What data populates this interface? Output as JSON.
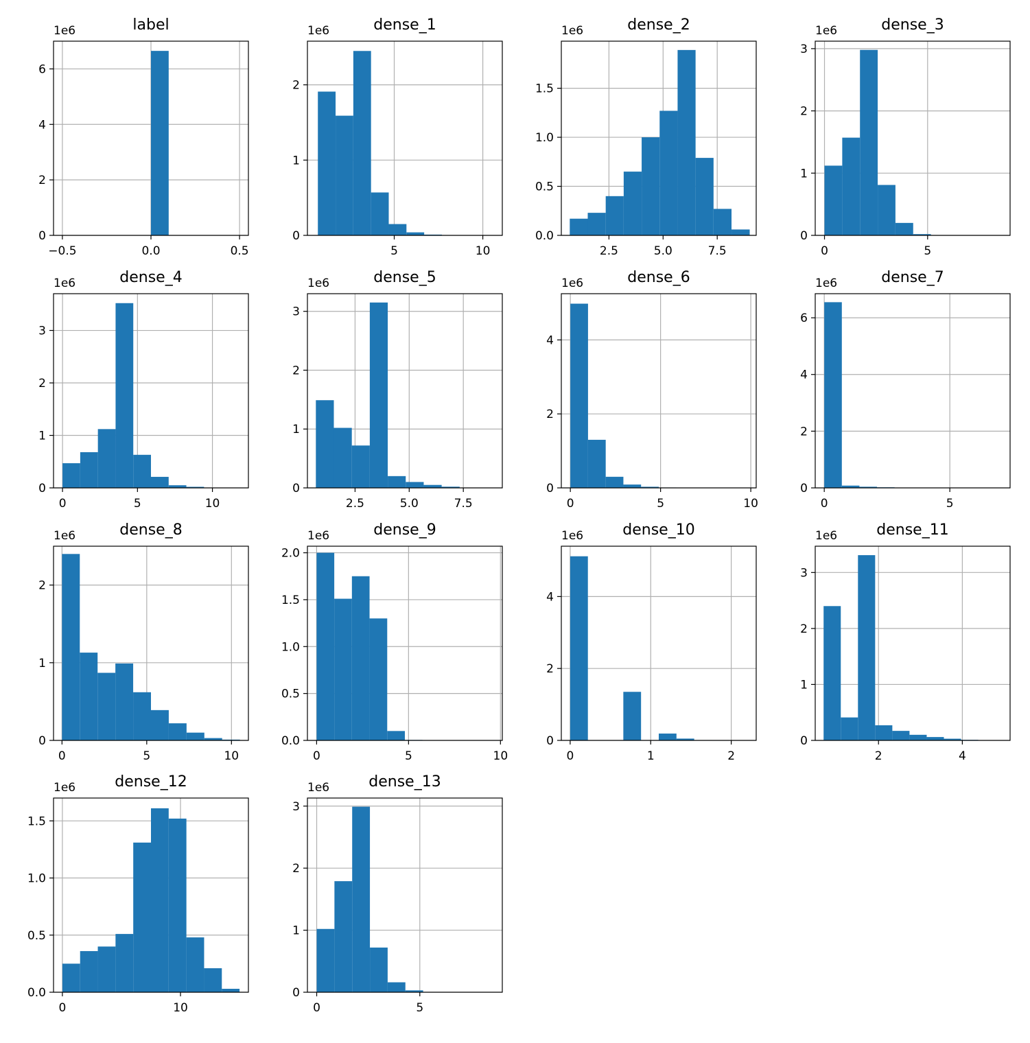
{
  "chart_data": [
    {
      "type": "bar",
      "title": "label",
      "offset_text": "1e6",
      "xlim": [
        -0.55,
        0.55
      ],
      "ylim": [
        0,
        7.0
      ],
      "bin_edges": [
        -0.5,
        -0.4,
        -0.3,
        -0.2,
        -0.1,
        0.0,
        0.1,
        0.2,
        0.3,
        0.4,
        0.5
      ],
      "values": [
        0,
        0,
        0,
        0,
        0,
        6.65,
        0,
        0,
        0,
        0
      ],
      "xticks": [
        -0.5,
        0.0,
        0.5
      ],
      "xtick_labels": [
        "−0.5",
        "0.0",
        "0.5"
      ],
      "yticks": [
        0,
        2,
        4,
        6
      ],
      "ytick_labels": [
        "0",
        "2",
        "4",
        "6"
      ],
      "grid": true
    },
    {
      "type": "bar",
      "title": "dense_1",
      "offset_text": "1e6",
      "xlim": [
        0.1,
        11.1
      ],
      "ylim": [
        0,
        2.58
      ],
      "bin_edges": [
        0.69,
        1.69,
        2.69,
        3.69,
        4.69,
        5.69,
        6.69,
        7.69,
        8.69,
        9.69,
        10.69
      ],
      "values": [
        1.91,
        1.59,
        2.45,
        0.57,
        0.15,
        0.04,
        0.01,
        0.003,
        0.001,
        0.0005
      ],
      "xticks": [
        5,
        10
      ],
      "xtick_labels": [
        "5",
        "10"
      ],
      "yticks": [
        0,
        1,
        2
      ],
      "ytick_labels": [
        "0",
        "1",
        "2"
      ],
      "grid": true
    },
    {
      "type": "bar",
      "title": "dense_2",
      "offset_text": "1e6",
      "xlim": [
        0.3,
        9.3
      ],
      "ylim": [
        0,
        1.98
      ],
      "bin_edges": [
        0.69,
        1.52,
        2.35,
        3.18,
        4.01,
        4.84,
        5.67,
        6.5,
        7.33,
        8.16,
        9.0
      ],
      "values": [
        0.17,
        0.23,
        0.4,
        0.65,
        1.0,
        1.27,
        1.89,
        0.79,
        0.27,
        0.06
      ],
      "xticks": [
        2.5,
        5.0,
        7.5
      ],
      "xtick_labels": [
        "2.5",
        "5.0",
        "7.5"
      ],
      "yticks": [
        0.0,
        0.5,
        1.0,
        1.5
      ],
      "ytick_labels": [
        "0.0",
        "0.5",
        "1.0",
        "1.5"
      ],
      "grid": true
    },
    {
      "type": "bar",
      "title": "dense_3",
      "offset_text": "1e6",
      "xlim": [
        -0.45,
        9.0
      ],
      "ylim": [
        0,
        3.12
      ],
      "bin_edges": [
        0.0,
        0.86,
        1.72,
        2.58,
        3.44,
        4.3,
        5.16,
        6.02,
        6.88,
        7.74,
        8.6
      ],
      "values": [
        1.12,
        1.57,
        2.98,
        0.81,
        0.2,
        0.02,
        0.005,
        0.001,
        0.0005,
        0.0002
      ],
      "xticks": [
        0,
        5
      ],
      "xtick_labels": [
        "0",
        "5"
      ],
      "yticks": [
        0,
        1,
        2,
        3
      ],
      "ytick_labels": [
        "0",
        "1",
        "2",
        "3"
      ],
      "grid": true
    },
    {
      "type": "bar",
      "title": "dense_4",
      "offset_text": "1e6",
      "xlim": [
        -0.6,
        12.4
      ],
      "ylim": [
        0,
        3.7
      ],
      "bin_edges": [
        0.0,
        1.18,
        2.36,
        3.54,
        4.72,
        5.9,
        7.08,
        8.26,
        9.44,
        10.62,
        11.8
      ],
      "values": [
        0.47,
        0.68,
        1.12,
        3.52,
        0.63,
        0.21,
        0.05,
        0.02,
        0.005,
        0.001
      ],
      "xticks": [
        0,
        5,
        10
      ],
      "xtick_labels": [
        "0",
        "5",
        "10"
      ],
      "yticks": [
        0,
        1,
        2,
        3
      ],
      "ytick_labels": [
        "0",
        "1",
        "2",
        "3"
      ],
      "grid": true
    },
    {
      "type": "bar",
      "title": "dense_5",
      "offset_text": "1e6",
      "xlim": [
        0.3,
        9.3
      ],
      "ylim": [
        0,
        3.3
      ],
      "bin_edges": [
        0.69,
        1.52,
        2.35,
        3.18,
        4.01,
        4.84,
        5.67,
        6.5,
        7.33,
        8.16,
        9.0
      ],
      "values": [
        1.49,
        1.02,
        0.72,
        3.15,
        0.2,
        0.1,
        0.05,
        0.02,
        0.005,
        0.001
      ],
      "xticks": [
        2.5,
        5.0,
        7.5
      ],
      "xtick_labels": [
        "2.5",
        "5.0",
        "7.5"
      ],
      "yticks": [
        0,
        1,
        2,
        3
      ],
      "ytick_labels": [
        "0",
        "1",
        "2",
        "3"
      ],
      "grid": true
    },
    {
      "type": "bar",
      "title": "dense_6",
      "offset_text": "1e6",
      "xlim": [
        -0.5,
        10.3
      ],
      "ylim": [
        0,
        5.25
      ],
      "bin_edges": [
        0.0,
        0.98,
        1.96,
        2.94,
        3.92,
        4.9,
        5.88,
        6.86,
        7.84,
        8.82,
        9.8
      ],
      "values": [
        4.98,
        1.3,
        0.3,
        0.09,
        0.03,
        0.01,
        0.003,
        0.001,
        0.0005,
        0.0002
      ],
      "xticks": [
        0,
        5,
        10
      ],
      "xtick_labels": [
        "0",
        "5",
        "10"
      ],
      "yticks": [
        0,
        2,
        4
      ],
      "ytick_labels": [
        "0",
        "2",
        "4"
      ],
      "grid": true
    },
    {
      "type": "bar",
      "title": "dense_7",
      "offset_text": "1e6",
      "xlim": [
        -0.36,
        7.4
      ],
      "ylim": [
        0,
        6.85
      ],
      "bin_edges": [
        0.0,
        0.7,
        1.4,
        2.1,
        2.8,
        3.5,
        4.2,
        4.9,
        5.6,
        6.3,
        7.0
      ],
      "values": [
        6.55,
        0.08,
        0.04,
        0.02,
        0.005,
        0.002,
        0.001,
        0.0005,
        0.0002,
        0.0001
      ],
      "xticks": [
        0,
        5
      ],
      "xtick_labels": [
        "0",
        "5"
      ],
      "yticks": [
        0,
        2,
        4,
        6
      ],
      "ytick_labels": [
        "0",
        "2",
        "4",
        "6"
      ],
      "grid": true
    },
    {
      "type": "bar",
      "title": "dense_8",
      "offset_text": "1e6",
      "xlim": [
        -0.5,
        11.0
      ],
      "ylim": [
        0,
        2.5
      ],
      "bin_edges": [
        0.0,
        1.05,
        2.1,
        3.15,
        4.2,
        5.25,
        6.3,
        7.35,
        8.4,
        9.45,
        10.5
      ],
      "values": [
        2.4,
        1.13,
        0.87,
        0.99,
        0.62,
        0.39,
        0.22,
        0.1,
        0.03,
        0.01
      ],
      "xticks": [
        0,
        5,
        10
      ],
      "xtick_labels": [
        "0",
        "5",
        "10"
      ],
      "yticks": [
        0,
        1,
        2
      ],
      "ytick_labels": [
        "0",
        "1",
        "2"
      ],
      "grid": true
    },
    {
      "type": "bar",
      "title": "dense_9",
      "offset_text": "1e6",
      "xlim": [
        -0.5,
        10.1
      ],
      "ylim": [
        0,
        2.07
      ],
      "bin_edges": [
        0.0,
        0.96,
        1.92,
        2.88,
        3.84,
        4.8,
        5.76,
        6.72,
        7.68,
        8.64,
        9.6
      ],
      "values": [
        2.0,
        1.51,
        1.75,
        1.3,
        0.1,
        0.005,
        0.002,
        0.001,
        0.0005,
        0.0002
      ],
      "xticks": [
        0,
        5,
        10
      ],
      "xtick_labels": [
        "0",
        "5",
        "10"
      ],
      "yticks": [
        0.0,
        0.5,
        1.0,
        1.5,
        2.0
      ],
      "ytick_labels": [
        "0.0",
        "0.5",
        "1.0",
        "1.5",
        "2.0"
      ],
      "grid": true
    },
    {
      "type": "bar",
      "title": "dense_10",
      "offset_text": "1e6",
      "xlim": [
        -0.11,
        2.31
      ],
      "ylim": [
        0,
        5.4
      ],
      "bin_edges": [
        0.0,
        0.22,
        0.44,
        0.66,
        0.88,
        1.1,
        1.32,
        1.54,
        1.76,
        1.98,
        2.2
      ],
      "values": [
        5.12,
        0.0,
        0.0,
        1.35,
        0.0,
        0.19,
        0.05,
        0.01,
        0.003,
        0.001
      ],
      "xticks": [
        0,
        1,
        2
      ],
      "xtick_labels": [
        "0",
        "1",
        "2"
      ],
      "yticks": [
        0,
        2,
        4
      ],
      "ytick_labels": [
        "0",
        "2",
        "4"
      ],
      "grid": true
    },
    {
      "type": "bar",
      "title": "dense_11",
      "offset_text": "1e6",
      "xlim": [
        0.49,
        5.14
      ],
      "ylim": [
        0,
        3.47
      ],
      "bin_edges": [
        0.69,
        1.1,
        1.51,
        1.92,
        2.33,
        2.74,
        3.15,
        3.56,
        3.97,
        4.38,
        4.79
      ],
      "values": [
        2.4,
        0.41,
        3.31,
        0.27,
        0.17,
        0.1,
        0.06,
        0.03,
        0.01,
        0.005
      ],
      "xticks": [
        2,
        4
      ],
      "xtick_labels": [
        "2",
        "4"
      ],
      "yticks": [
        0,
        1,
        2,
        3
      ],
      "ytick_labels": [
        "0",
        "1",
        "2",
        "3"
      ],
      "grid": true
    },
    {
      "type": "bar",
      "title": "dense_12",
      "offset_text": "1e6",
      "xlim": [
        -0.75,
        15.75
      ],
      "ylim": [
        0,
        1.7
      ],
      "bin_edges": [
        0.0,
        1.5,
        3.0,
        4.5,
        6.0,
        7.5,
        9.0,
        10.5,
        12.0,
        13.5,
        15.0
      ],
      "values": [
        0.25,
        0.36,
        0.4,
        0.51,
        1.31,
        1.61,
        1.52,
        0.48,
        0.21,
        0.03
      ],
      "xticks": [
        0,
        10
      ],
      "xtick_labels": [
        "0",
        "10"
      ],
      "yticks": [
        0.0,
        0.5,
        1.0,
        1.5
      ],
      "ytick_labels": [
        "0.0",
        "0.5",
        "1.0",
        "1.5"
      ],
      "grid": true
    },
    {
      "type": "bar",
      "title": "dense_13",
      "offset_text": "1e6",
      "xlim": [
        -0.45,
        9.0
      ],
      "ylim": [
        0,
        3.13
      ],
      "bin_edges": [
        0.0,
        0.86,
        1.72,
        2.58,
        3.44,
        4.3,
        5.16,
        6.02,
        6.88,
        7.74,
        8.6
      ],
      "values": [
        1.02,
        1.79,
        2.99,
        0.72,
        0.16,
        0.03,
        0.005,
        0.002,
        0.001,
        0.0005
      ],
      "xticks": [
        0,
        5
      ],
      "xtick_labels": [
        "0",
        "5"
      ],
      "yticks": [
        0,
        1,
        2,
        3
      ],
      "ytick_labels": [
        "0",
        "1",
        "2",
        "3"
      ],
      "grid": true
    }
  ],
  "colors": {
    "bar": "#1f77b4",
    "grid": "#b0b0b0",
    "axis": "#000000"
  }
}
